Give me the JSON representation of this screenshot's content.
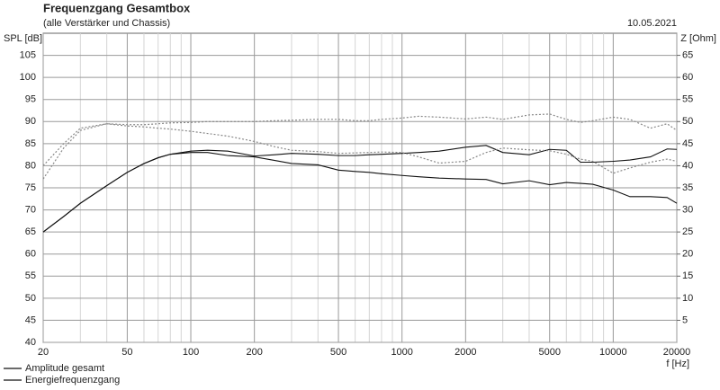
{
  "chart_data": {
    "type": "line",
    "title": "Frequenzgang Gesamtbox",
    "subtitle": "(alle Verstärker und Chassis)",
    "date": "10.05.2021",
    "ylabel": "SPL [dB]",
    "y2label": "Z [Ohm]",
    "xlabel": "f [Hz]",
    "xscale": "log",
    "xlim": [
      20,
      20000
    ],
    "xticks": [
      20,
      50,
      100,
      200,
      500,
      1000,
      2000,
      5000,
      10000,
      20000
    ],
    "xminorticks": [
      30,
      40,
      60,
      70,
      80,
      90,
      300,
      400,
      600,
      700,
      800,
      900,
      3000,
      4000,
      6000,
      7000,
      8000,
      9000
    ],
    "ylim": [
      40,
      110
    ],
    "yticks": [
      40,
      45,
      50,
      55,
      60,
      65,
      70,
      75,
      80,
      85,
      90,
      95,
      100,
      105
    ],
    "y2lim": [
      0,
      70
    ],
    "y2ticks": [
      5,
      10,
      15,
      20,
      25,
      30,
      35,
      40,
      45,
      50,
      55,
      60,
      65
    ],
    "grid": true,
    "legend": "bottom-left",
    "x": [
      20,
      25,
      30,
      40,
      50,
      60,
      70,
      80,
      100,
      120,
      150,
      200,
      250,
      300,
      400,
      500,
      600,
      700,
      800,
      1000,
      1200,
      1500,
      2000,
      2500,
      3000,
      4000,
      5000,
      6000,
      7000,
      8000,
      10000,
      12000,
      15000,
      18000,
      20000
    ],
    "series": [
      {
        "name": "Amplitude gesamt",
        "color": "#111111",
        "style": "solid",
        "values": [
          65,
          68.5,
          71.5,
          75.5,
          78.5,
          80.5,
          81.8,
          82.6,
          83.3,
          83.5,
          83.3,
          82.2,
          82.5,
          82.8,
          82.6,
          82.3,
          82.3,
          82.5,
          82.6,
          82.8,
          83,
          83.3,
          84.2,
          84.6,
          83,
          82.5,
          83.7,
          83.5,
          80.8,
          80.8,
          81,
          81.3,
          82,
          83.8,
          83.7
        ]
      },
      {
        "name": "Energiefrequenzgang",
        "color": "#111111",
        "style": "solid",
        "values": [
          65,
          68.5,
          71.5,
          75.5,
          78.5,
          80.5,
          81.8,
          82.6,
          83,
          83,
          82.3,
          82,
          81.2,
          80.5,
          80.2,
          79,
          78.7,
          78.5,
          78.2,
          77.8,
          77.5,
          77.2,
          77,
          76.9,
          75.9,
          76.6,
          75.7,
          76.2,
          76,
          75.8,
          74.5,
          73,
          73,
          72.8,
          71.5
        ]
      },
      {
        "color": "#888888",
        "style": "dotted",
        "values": [
          77,
          84,
          88,
          89.5,
          89.3,
          89.3,
          89.5,
          89.7,
          89.8,
          90,
          90,
          90,
          90.2,
          90.3,
          90.5,
          90.5,
          90.2,
          90.2,
          90.5,
          90.8,
          91.2,
          91,
          90.6,
          91,
          90.5,
          91.5,
          91.7,
          90.5,
          89.8,
          90.2,
          91,
          90.5,
          88.5,
          89.5,
          88
        ]
      },
      {
        "color": "#888888",
        "style": "dotted",
        "values": [
          80,
          85,
          88.5,
          89.5,
          89,
          88.8,
          88.5,
          88.3,
          87.8,
          87.3,
          86.7,
          85.5,
          84.3,
          83.5,
          83.2,
          82.8,
          82.9,
          83,
          83.1,
          83,
          82,
          80.6,
          81,
          83,
          84,
          83.6,
          83.4,
          82.6,
          81.5,
          81,
          78.3,
          79.5,
          80.8,
          81.5,
          81
        ]
      }
    ]
  }
}
